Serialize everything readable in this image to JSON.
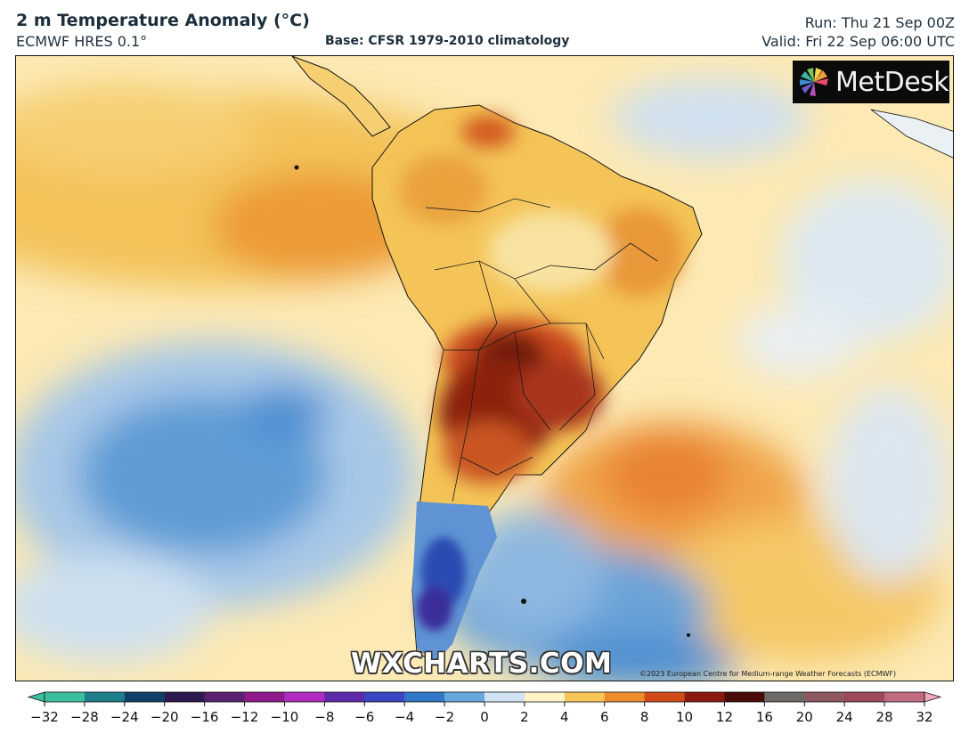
{
  "header": {
    "title": "2 m Temperature Anomaly (°C)",
    "model": "ECMWF HRES 0.1°",
    "base": "Base: CFSR 1979-2010 climatology",
    "run": "Run: Thu 21 Sep 00Z",
    "valid": "Valid: Fri 22 Sep 06:00 UTC"
  },
  "map": {
    "region": "South America",
    "logo_text": "MetDesk",
    "watermark": "WXCHARTS.COM",
    "copyright": "©2023 European Centre for Medium-range Weather Forecasts (ECMWF)"
  },
  "colorbar": {
    "ticks": [
      "−32",
      "−28",
      "−24",
      "−20",
      "−16",
      "−12",
      "−10",
      "−8",
      "−6",
      "−4",
      "−2",
      "0",
      "2",
      "4",
      "6",
      "8",
      "10",
      "12",
      "16",
      "20",
      "24",
      "28",
      "32"
    ],
    "colors": [
      "#3dbf9e",
      "#1e7f8a",
      "#0f3f66",
      "#2d1850",
      "#5a1f6e",
      "#8e1a8c",
      "#b02cc0",
      "#5d2aa8",
      "#3a46c4",
      "#3276c8",
      "#6aa7dc",
      "#cfe3f3",
      "#fff3c8",
      "#f6c657",
      "#ea8d2a",
      "#cf4a17",
      "#8a1a10",
      "#4a0c08",
      "#6e6a68",
      "#8e5860",
      "#9c4a5c",
      "#c06a80",
      "#f0a8c0"
    ]
  }
}
